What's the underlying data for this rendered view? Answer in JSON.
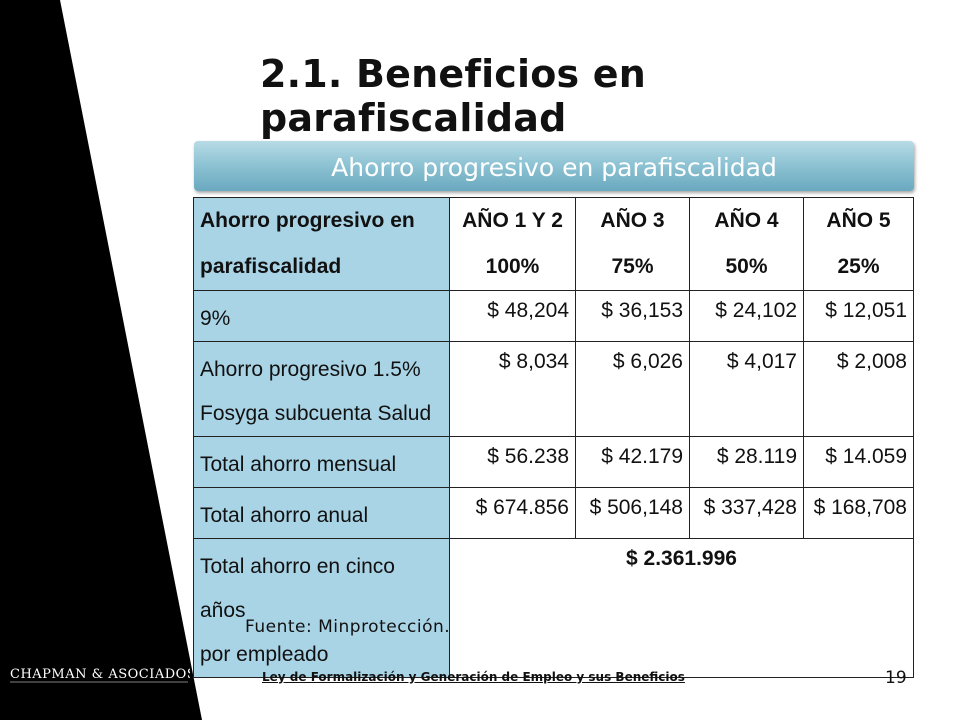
{
  "slide": {
    "title": "2.1. Beneficios en parafiscalidad",
    "banner": "Ahorro progresivo en parafiscalidad",
    "source": "Fuente: Minprotección.",
    "footer_link": "Ley de Formalización y Generación de Empleo y sus Beneficios",
    "page_number": "19",
    "logo_text": "CHAPMAN & ASOCIADOS"
  },
  "table": {
    "header": {
      "label": [
        "Ahorro progresivo en",
        "parafiscalidad"
      ],
      "columns": [
        [
          "AÑO 1 Y 2",
          "100%"
        ],
        [
          "AÑO 3",
          "75%"
        ],
        [
          "AÑO 4",
          "50%"
        ],
        [
          "AÑO 5",
          "25%"
        ]
      ]
    },
    "rows": [
      {
        "label": "9%",
        "values": [
          "$ 48,204",
          "$ 36,153",
          "$ 24,102",
          "$ 12,051"
        ]
      },
      {
        "label": [
          "Ahorro progresivo 1.5%",
          "Fosyga subcuenta Salud"
        ],
        "values": [
          "$ 8,034",
          "$ 6,026",
          "$ 4,017",
          "$ 2,008"
        ]
      },
      {
        "label": "Total ahorro mensual",
        "values": [
          "$ 56.238",
          "$ 42.179",
          "$ 28.119",
          "$ 14.059"
        ]
      },
      {
        "label": "Total ahorro anual",
        "values": [
          "$ 674.856",
          "$ 506,148",
          "$ 337,428",
          "$ 168,708"
        ]
      },
      {
        "label": [
          "Total ahorro en cinco años",
          "por empleado"
        ],
        "merged_value": "$ 2.361.996"
      }
    ]
  },
  "colors": {
    "left_band": "#000000",
    "banner": "#8fc4d4",
    "label_cells": "#a9d4e6"
  }
}
